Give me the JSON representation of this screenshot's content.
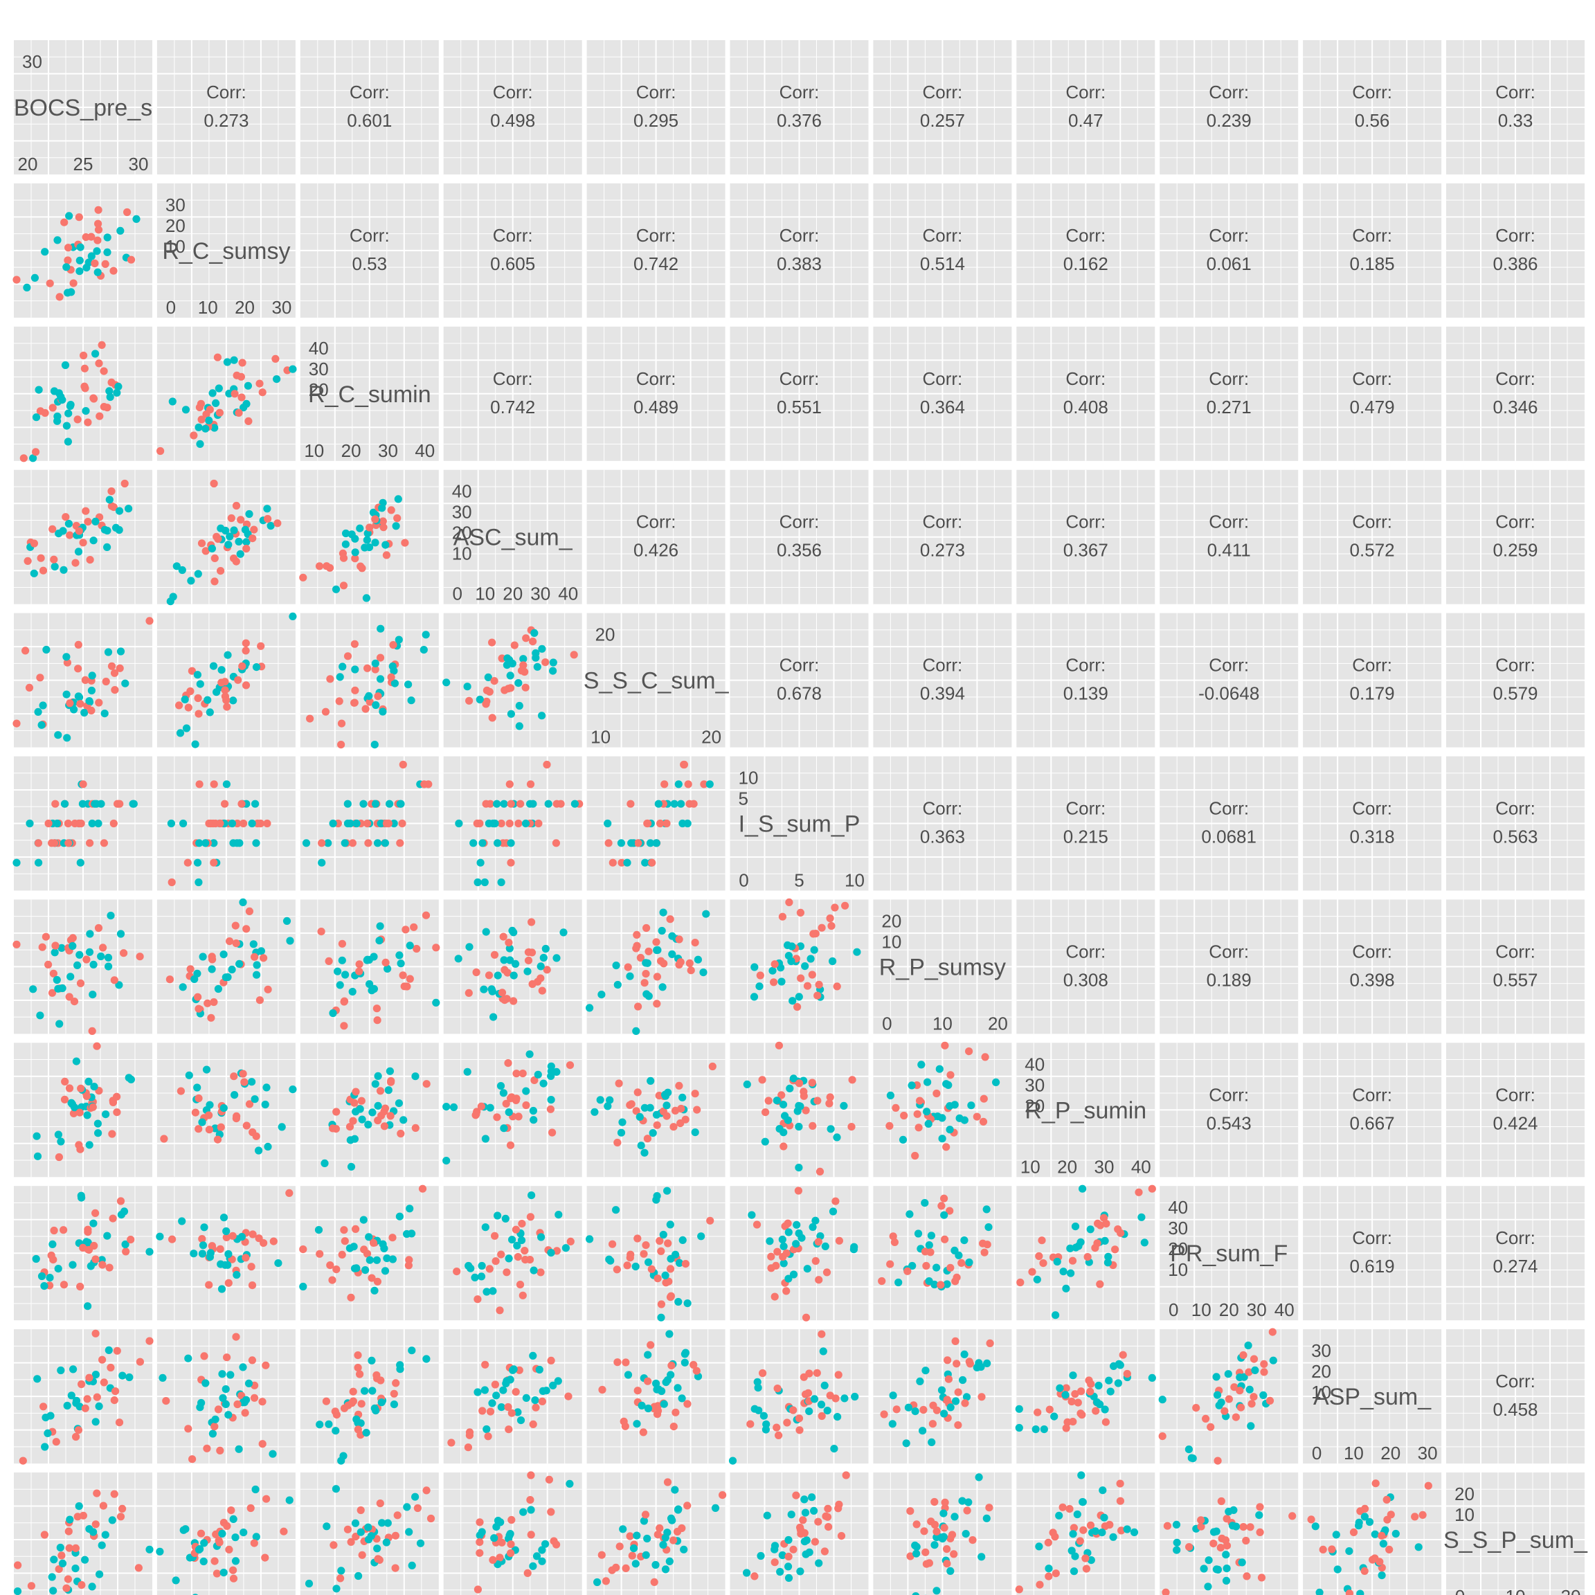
{
  "chart_data": {
    "type": "scatter",
    "variables": [
      "BOCS_pre_s",
      "R_C_sumsy",
      "R_C_sumin",
      "ASC_sum_",
      "S_S_C_sum_",
      "I_S_sum_P",
      "R_P_sumsy",
      "R_P_sumin",
      "PR_sum_F",
      "ASP_sum_",
      "S_S_P_sum_"
    ],
    "groups": [
      {
        "name": "",
        "color": "#F8766D"
      },
      {
        "name": "",
        "color": "#00BFC4"
      }
    ],
    "correlations": [
      [
        "0.273",
        "0.601",
        "0.498",
        "0.295",
        "0.376",
        "0.257",
        "0.47",
        "0.239",
        "0.56",
        "0.33"
      ],
      [
        "0.53",
        "0.605",
        "0.742",
        "0.383",
        "0.514",
        "0.162",
        "0.061",
        "0.185",
        "0.386"
      ],
      [
        "0.742",
        "0.489",
        "0.551",
        "0.364",
        "0.408",
        "0.271",
        "0.479",
        "0.346"
      ],
      [
        "0.426",
        "0.356",
        "0.273",
        "0.367",
        "0.411",
        "0.572",
        "0.259"
      ],
      [
        "0.678",
        "0.394",
        "0.139",
        "-0.0648",
        "0.179",
        "0.579"
      ],
      [
        "0.363",
        "0.215",
        "0.0681",
        "0.318",
        "0.563"
      ],
      [
        "0.308",
        "0.189",
        "0.398",
        "0.557"
      ],
      [
        "0.543",
        "0.667",
        "0.424"
      ],
      [
        "0.619",
        "0.274"
      ],
      [
        "0.458"
      ]
    ],
    "corr_label": "Corr:",
    "diagonal_ticks": [
      {
        "top": [
          "30"
        ],
        "bottom": [
          "20",
          "25",
          "30"
        ]
      },
      {
        "top": [
          "30",
          "20",
          "10"
        ],
        "bottom": [
          "0",
          "10",
          "20",
          "30"
        ]
      },
      {
        "top": [
          "40",
          "30",
          "20"
        ],
        "bottom": [
          "10",
          "20",
          "30",
          "40"
        ]
      },
      {
        "top": [
          "40",
          "30",
          "20",
          "10"
        ],
        "bottom": [
          "0",
          "10",
          "20",
          "30",
          "40"
        ]
      },
      {
        "top": [
          "20"
        ],
        "bottom": [
          "10",
          "20"
        ]
      },
      {
        "top": [
          "10",
          "5"
        ],
        "bottom": [
          "0",
          "5",
          "10"
        ]
      },
      {
        "top": [
          "20",
          "10"
        ],
        "bottom": [
          "0",
          "10",
          "20"
        ]
      },
      {
        "top": [
          "40",
          "30",
          "20"
        ],
        "bottom": [
          "10",
          "20",
          "30",
          "40"
        ]
      },
      {
        "top": [
          "40",
          "30",
          "20",
          "10"
        ],
        "bottom": [
          "0",
          "10",
          "20",
          "30",
          "40"
        ]
      },
      {
        "top": [
          "30",
          "20",
          "10"
        ],
        "bottom": [
          "0",
          "10",
          "20",
          "30"
        ]
      },
      {
        "top": [
          "20",
          "10"
        ],
        "bottom": [
          "0",
          "10",
          "20"
        ]
      }
    ],
    "colors": {
      "panel_bg": "#E5E5E5",
      "grid": "#FFFFFF",
      "text": "#4D4D4D",
      "label_text": "#555555"
    },
    "grid": true
  }
}
